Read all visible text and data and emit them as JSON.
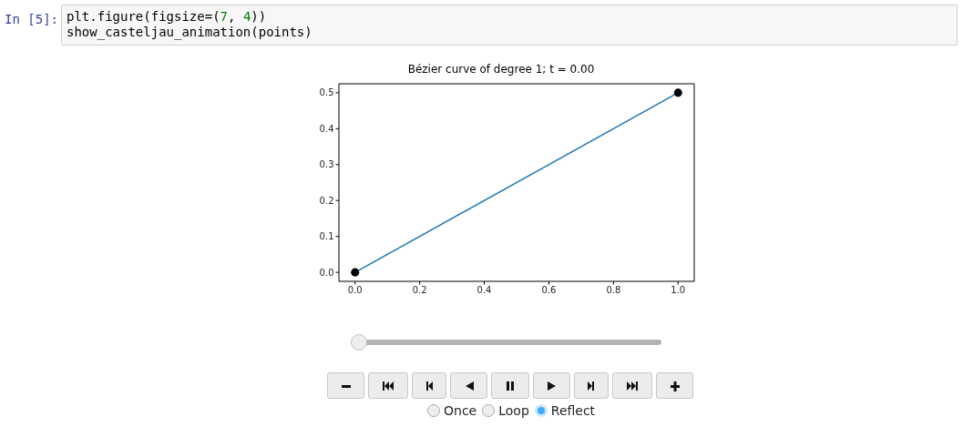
{
  "chart_data": {
    "type": "line",
    "title": "Bézier curve of degree 1; t = 0.00",
    "x": [
      0,
      1
    ],
    "series": [
      {
        "type": "line",
        "color": "#1f77b4",
        "values": [
          0,
          0.5
        ],
        "marker": "none"
      },
      {
        "type": "scatter",
        "color": "#000000",
        "values": [
          0,
          0.5
        ],
        "marker": "circle"
      }
    ],
    "xlim": [
      -0.05,
      1.05
    ],
    "xticks": [
      {
        "value": 0,
        "label": "0.0"
      },
      0.2,
      0.4,
      0.6,
      0.8,
      {
        "value": 1,
        "label": "1.0"
      }
    ],
    "ylim": [
      -0.025,
      0.525
    ],
    "yticks": [
      {
        "value": 0,
        "label": "0.0"
      },
      0.1,
      0.2,
      0.3,
      0.4,
      0.5
    ],
    "annotations": [
      "In [5]:",
      "plt.figure(figsize=(7, 4))\nshow_casteljau_animation(points)",
      "Once",
      "Loop",
      "Reflect"
    ]
  }
}
